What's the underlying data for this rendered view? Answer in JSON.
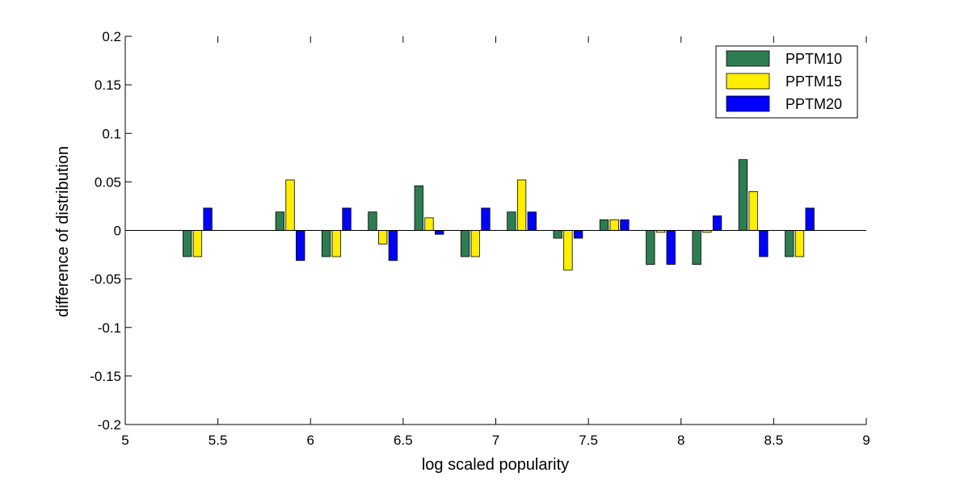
{
  "chart_data": {
    "type": "bar",
    "xlabel": "log scaled popularity",
    "ylabel": "difference of distribution",
    "xlim": [
      5,
      9
    ],
    "ylim": [
      -0.2,
      0.2
    ],
    "x_ticks": [
      5,
      5.5,
      6,
      6.5,
      7,
      7.5,
      8,
      8.5,
      9
    ],
    "x_tick_labels": [
      "5",
      "5.5",
      "6",
      "6.5",
      "7",
      "7.5",
      "8",
      "8.5",
      "9"
    ],
    "y_ticks": [
      -0.2,
      -0.15,
      -0.1,
      -0.05,
      0,
      0.05,
      0.1,
      0.15,
      0.2
    ],
    "y_tick_labels": [
      "-0.2",
      "-0.15",
      "-0.1",
      "-0.05",
      "0",
      "0.05",
      "0.1",
      "0.15",
      "0.2"
    ],
    "grid": false,
    "legend_position": "top-right",
    "x": [
      5.39,
      5.89,
      6.14,
      6.39,
      6.64,
      6.89,
      7.14,
      7.39,
      7.64,
      7.89,
      8.14,
      8.39,
      8.64
    ],
    "series": [
      {
        "name": "PPTM10",
        "color": "#2e7d52",
        "values": [
          -0.027,
          0.019,
          -0.027,
          0.019,
          0.046,
          -0.027,
          0.019,
          -0.008,
          0.011,
          -0.035,
          -0.035,
          0.073,
          -0.027
        ]
      },
      {
        "name": "PPTM15",
        "color": "#ffee00",
        "values": [
          -0.027,
          0.052,
          -0.027,
          -0.014,
          0.013,
          -0.027,
          0.052,
          -0.041,
          0.011,
          -0.002,
          -0.002,
          0.04,
          -0.027
        ]
      },
      {
        "name": "PPTM20",
        "color": "#0000ff",
        "values": [
          0.023,
          -0.031,
          0.023,
          -0.031,
          -0.004,
          0.023,
          0.019,
          -0.008,
          0.011,
          -0.035,
          0.015,
          -0.027,
          0.023
        ]
      }
    ]
  }
}
